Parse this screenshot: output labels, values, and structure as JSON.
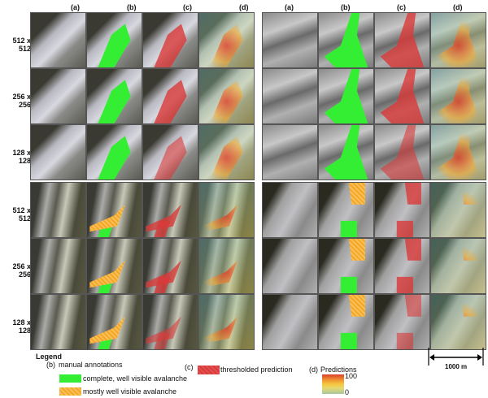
{
  "column_headers": [
    "(a)",
    "(b)",
    "(c)",
    "(d)"
  ],
  "row_labels": [
    "512 x 512",
    "256 x 256",
    "128 x 128"
  ],
  "colors": {
    "green": "#33ee33",
    "orange": "#f5a623",
    "red": "#d93a3a"
  },
  "legend": {
    "title": "Legend",
    "b_tag": "(b)",
    "b_label": "manual annotations",
    "b_items": [
      "complete, well visible avalanche",
      "mostly well visible avalanche"
    ],
    "c_tag": "(c)",
    "c_label": "thresholded prediction",
    "d_tag": "(d)",
    "d_label": "Predictions",
    "d_max": "100",
    "d_min": "0"
  },
  "scale_bar": "1000 m"
}
